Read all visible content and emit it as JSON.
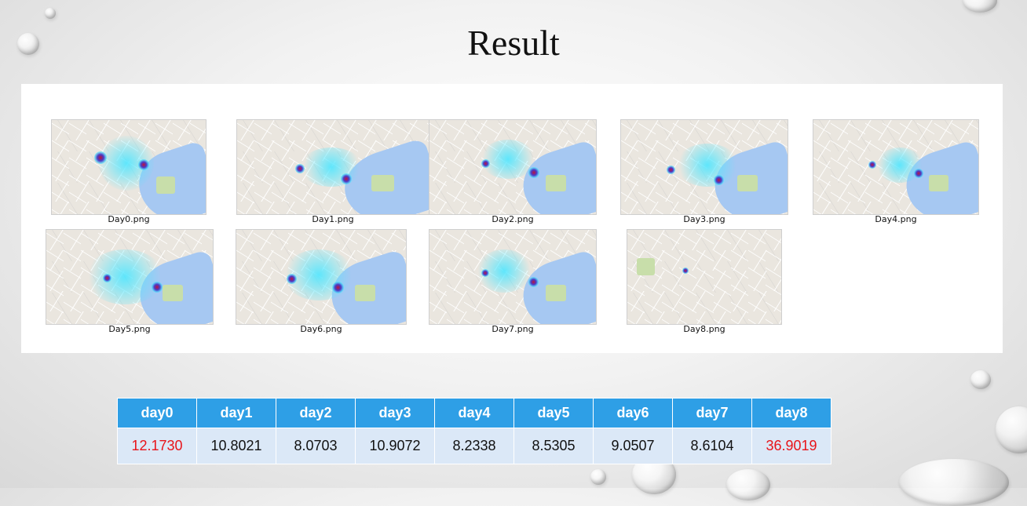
{
  "title": "Result",
  "images": [
    {
      "caption": "Day0.png",
      "icon": "heatmap-map-image"
    },
    {
      "caption": "Day1.png",
      "icon": "heatmap-map-image"
    },
    {
      "caption": "Day2.png",
      "icon": "heatmap-map-image"
    },
    {
      "caption": "Day3.png",
      "icon": "heatmap-map-image"
    },
    {
      "caption": "Day4.png",
      "icon": "heatmap-map-image"
    },
    {
      "caption": "Day5.png",
      "icon": "heatmap-map-image"
    },
    {
      "caption": "Day6.png",
      "icon": "heatmap-map-image"
    },
    {
      "caption": "Day7.png",
      "icon": "heatmap-map-image"
    },
    {
      "caption": "Day8.png",
      "icon": "heatmap-map-image"
    }
  ],
  "table": {
    "headers": [
      "day0",
      "day1",
      "day2",
      "day3",
      "day4",
      "day5",
      "day6",
      "day7",
      "day8"
    ],
    "values": [
      "12.1730",
      "10.8021",
      "8.0703",
      "10.9072",
      "8.2338",
      "8.5305",
      "9.0507",
      "8.6104",
      "36.9019"
    ],
    "highlight_color": "#e8141a",
    "header_color": "#2e9fe6",
    "cell_color": "#dbe8f7"
  }
}
